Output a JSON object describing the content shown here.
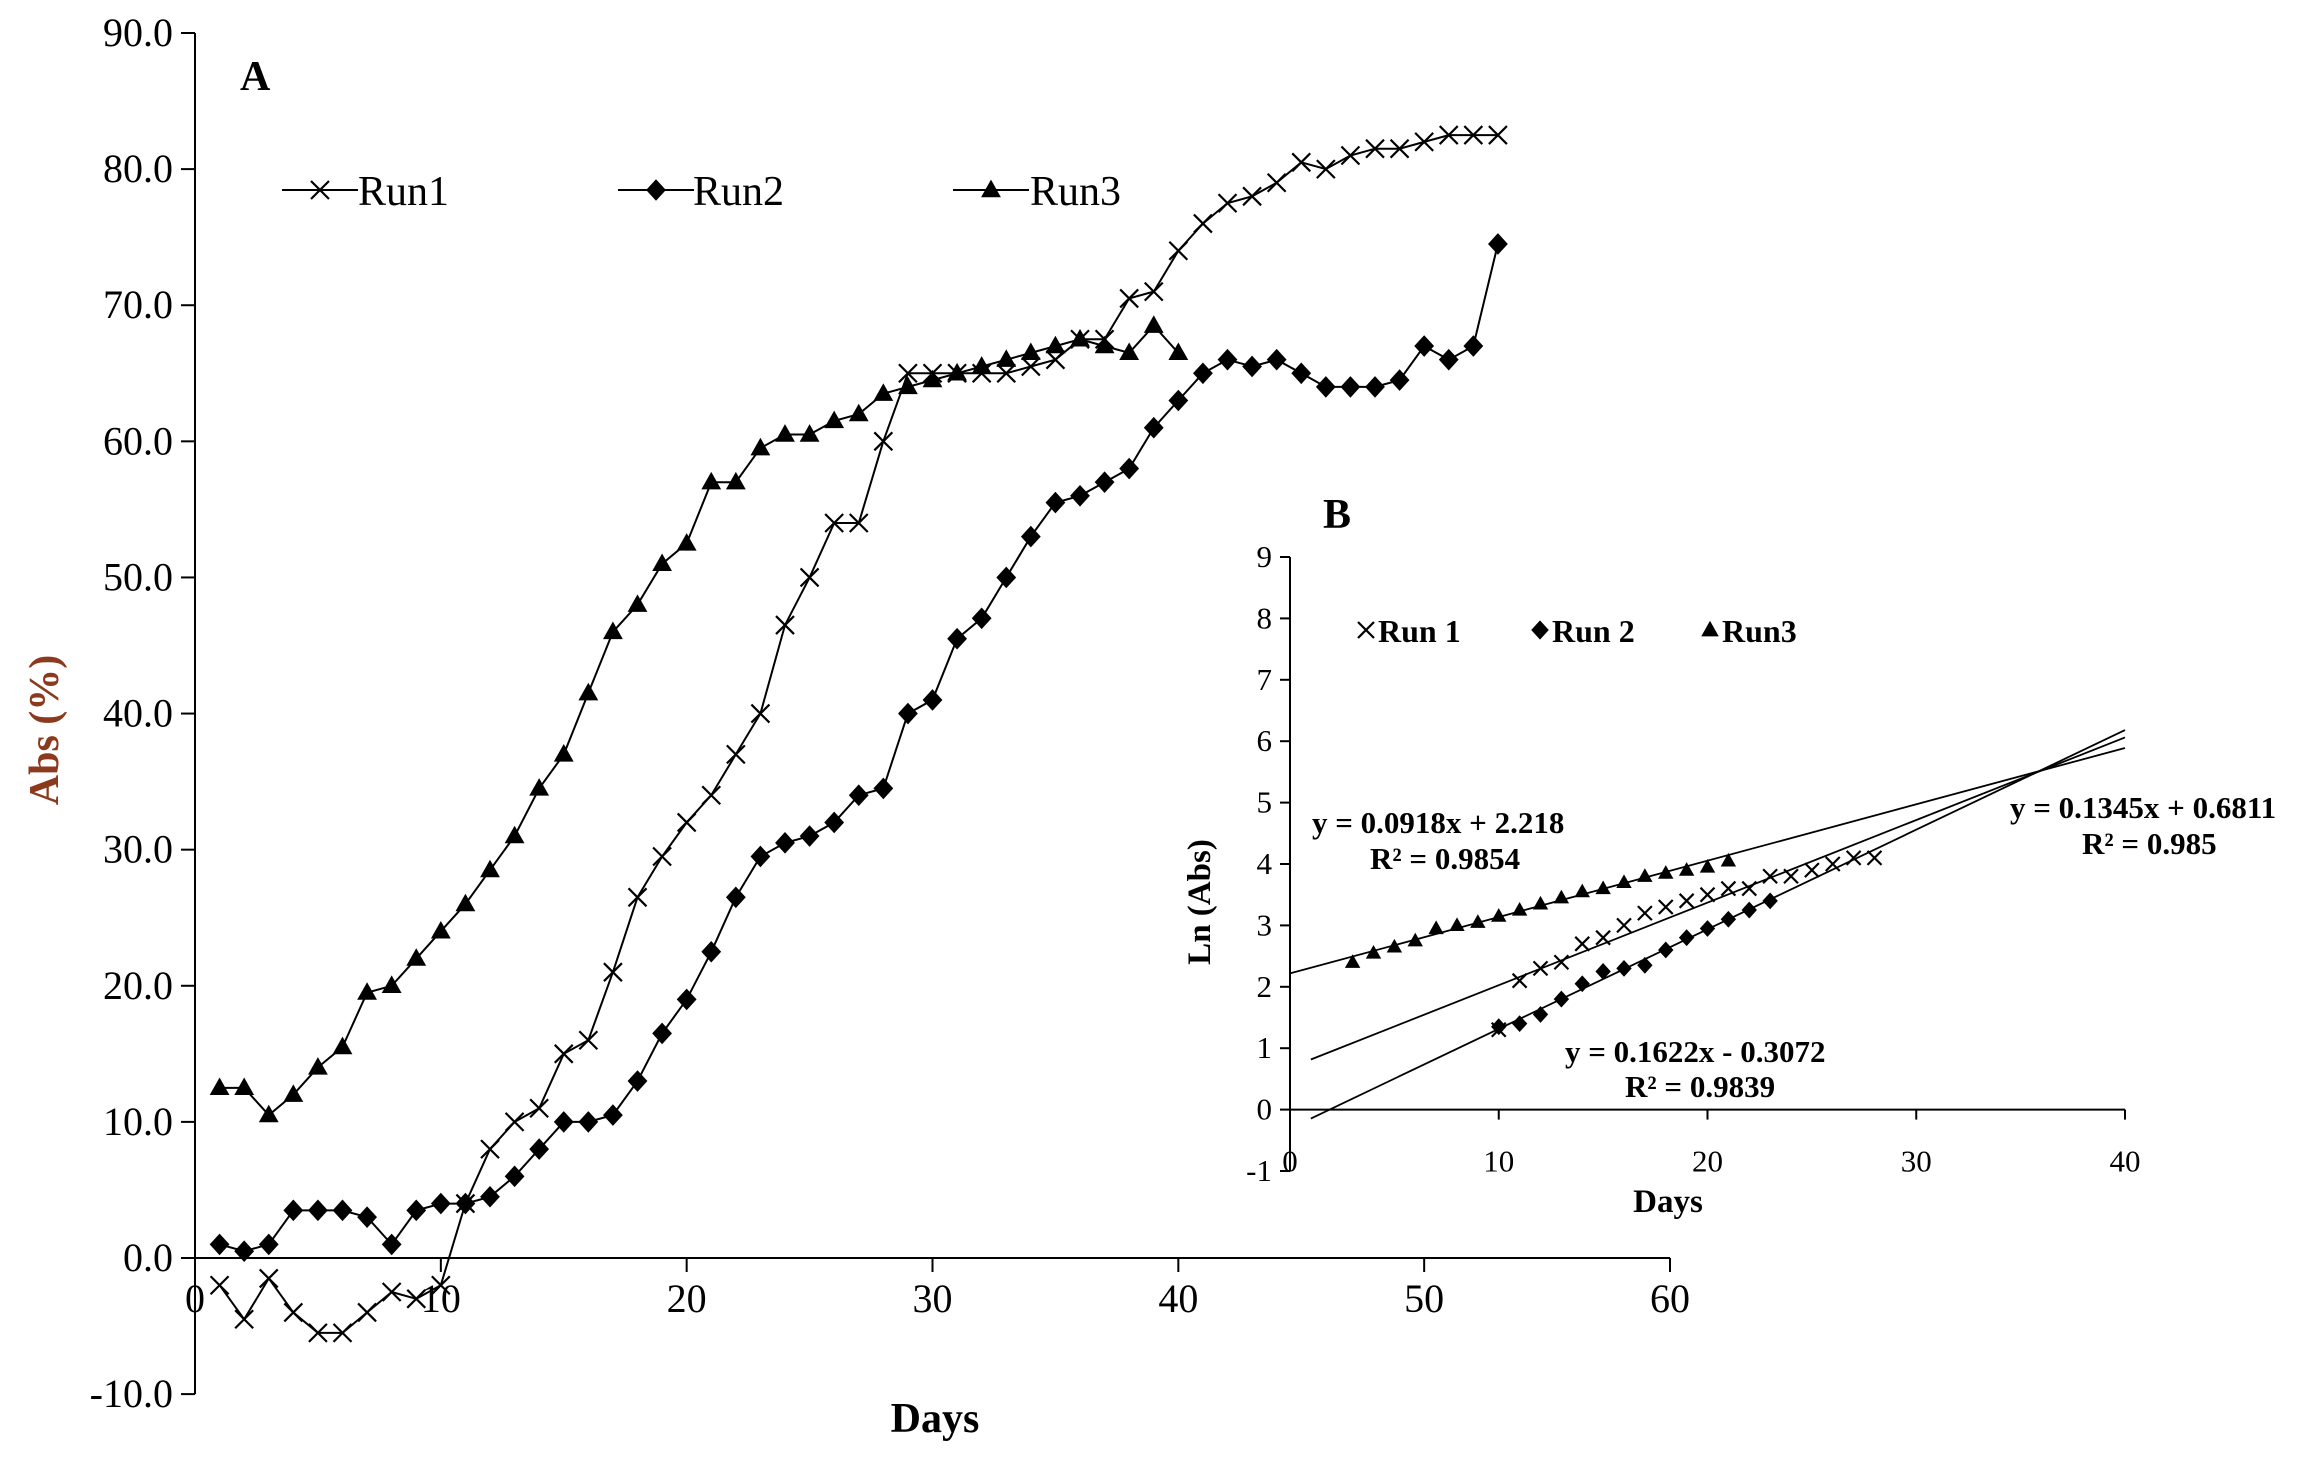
{
  "chart_data": [
    {
      "type": "line",
      "panel_label": "A",
      "xlabel": "Days",
      "ylabel": "Abs (%)",
      "xlim": [
        0,
        60
      ],
      "ylim": [
        -10,
        90
      ],
      "x_ticks": [
        0,
        10,
        20,
        30,
        40,
        50,
        60
      ],
      "y_ticks": [
        -10,
        0,
        10,
        20,
        30,
        40,
        50,
        60,
        70,
        80,
        90
      ],
      "y_tick_labels": [
        "-10.0",
        "0.0",
        "10.0",
        "20.0",
        "30.0",
        "40.0",
        "50.0",
        "60.0",
        "70.0",
        "80.0",
        "90.0"
      ],
      "legend_position": "top-left",
      "series": [
        {
          "name": "Run1",
          "marker": "x",
          "x": [
            1,
            2,
            3,
            4,
            5,
            6,
            7,
            8,
            9,
            10,
            11,
            12,
            13,
            14,
            15,
            16,
            17,
            18,
            19,
            20,
            21,
            22,
            23,
            24,
            25,
            26,
            27,
            28,
            29,
            30,
            31,
            32,
            33,
            34,
            35,
            36,
            37,
            38,
            39,
            40,
            41,
            42,
            43,
            44,
            45,
            46,
            47,
            48,
            49,
            50,
            51,
            52,
            53
          ],
          "y": [
            -2,
            -4.5,
            -1.5,
            -4,
            -5.5,
            -5.5,
            -4,
            -2.5,
            -3,
            -2,
            4,
            8,
            10,
            11,
            15,
            16,
            21,
            26.5,
            29.5,
            32,
            34,
            37,
            40,
            46.5,
            50,
            54,
            54,
            60,
            65,
            65,
            65,
            65,
            65,
            65.5,
            66,
            67.5,
            67.5,
            70.5,
            71,
            74,
            76,
            77.5,
            78,
            79,
            80.5,
            80,
            81,
            81.5,
            81.5,
            82,
            82.5,
            82.5,
            82.5
          ]
        },
        {
          "name": "Run2",
          "marker": "diamond",
          "x": [
            1,
            2,
            3,
            4,
            5,
            6,
            7,
            8,
            9,
            10,
            11,
            12,
            13,
            14,
            15,
            16,
            17,
            18,
            19,
            20,
            21,
            22,
            23,
            24,
            25,
            26,
            27,
            28,
            29,
            30,
            31,
            32,
            33,
            34,
            35,
            36,
            37,
            38,
            39,
            40,
            41,
            42,
            43,
            44,
            45,
            46,
            47,
            48,
            49,
            50,
            51,
            52,
            53
          ],
          "y": [
            1,
            0.5,
            1,
            3.5,
            3.5,
            3.5,
            3,
            1,
            3.5,
            4,
            4,
            4.5,
            6,
            8,
            10,
            10,
            10.5,
            13,
            16.5,
            19,
            22.5,
            26.5,
            29.5,
            30.5,
            31,
            32,
            34,
            34.5,
            40,
            41,
            45.5,
            47,
            50,
            53,
            55.5,
            56,
            57,
            58,
            61,
            63,
            65,
            66,
            65.5,
            66,
            65,
            64,
            64,
            64,
            64.5,
            67,
            66,
            67,
            74.5
          ]
        },
        {
          "name": "Run3",
          "marker": "triangle",
          "x": [
            1,
            2,
            3,
            4,
            5,
            6,
            7,
            8,
            9,
            10,
            11,
            12,
            13,
            14,
            15,
            16,
            17,
            18,
            19,
            20,
            21,
            22,
            23,
            24,
            25,
            26,
            27,
            28,
            29,
            30,
            31,
            32,
            33,
            34,
            35,
            36,
            37,
            38,
            39,
            40
          ],
          "y": [
            12.5,
            12.5,
            10.5,
            12,
            14,
            15.5,
            19.5,
            20,
            22,
            24,
            26,
            28.5,
            31,
            34.5,
            37,
            41.5,
            46,
            48,
            51,
            52.5,
            57,
            57,
            59.5,
            60.5,
            60.5,
            61.5,
            62,
            63.5,
            64,
            64.5,
            65,
            65.5,
            66,
            66.5,
            67,
            67.5,
            67,
            66.5,
            68.5,
            66.5
          ]
        }
      ]
    },
    {
      "type": "scatter",
      "panel_label": "B",
      "xlabel": "Days",
      "ylabel": "Ln (Abs)",
      "xlim": [
        0,
        40
      ],
      "ylim": [
        -1,
        9
      ],
      "x_ticks": [
        0,
        10,
        20,
        30,
        40
      ],
      "y_ticks": [
        -1,
        0,
        1,
        2,
        3,
        4,
        5,
        6,
        7,
        8,
        9
      ],
      "legend_position": "top-left",
      "series": [
        {
          "name": "Run 1",
          "marker": "x",
          "x": [
            10,
            11,
            12,
            13,
            14,
            15,
            16,
            17,
            18,
            19,
            20,
            21,
            22,
            23,
            24,
            25,
            26,
            27,
            28
          ],
          "y": [
            1.3,
            2.1,
            2.3,
            2.4,
            2.7,
            2.8,
            3.0,
            3.2,
            3.3,
            3.4,
            3.5,
            3.6,
            3.6,
            3.8,
            3.8,
            3.9,
            4.0,
            4.1,
            4.1
          ],
          "fit": {
            "slope": 0.1345,
            "intercept": 0.6811,
            "x_range": [
              1,
              40
            ],
            "equation": "y = 0.1345x + 0.6811",
            "r2": "R² = 0.985"
          }
        },
        {
          "name": "Run 2",
          "marker": "diamond",
          "x": [
            10,
            11,
            12,
            13,
            14,
            15,
            16,
            17,
            18,
            19,
            20,
            21,
            22,
            23
          ],
          "y": [
            1.35,
            1.4,
            1.55,
            1.8,
            2.05,
            2.25,
            2.3,
            2.35,
            2.6,
            2.8,
            2.95,
            3.1,
            3.25,
            3.4
          ],
          "fit": {
            "slope": 0.1622,
            "intercept": -0.3072,
            "x_range": [
              1,
              40
            ],
            "equation": "y = 0.1622x - 0.3072",
            "r2": "R² = 0.9839"
          }
        },
        {
          "name": "Run3",
          "marker": "triangle",
          "x": [
            3,
            4,
            5,
            6,
            7,
            8,
            9,
            10,
            11,
            12,
            13,
            14,
            15,
            16,
            17,
            18,
            19,
            20,
            21
          ],
          "y": [
            2.4,
            2.55,
            2.65,
            2.75,
            2.95,
            3.0,
            3.05,
            3.15,
            3.25,
            3.35,
            3.45,
            3.55,
            3.6,
            3.7,
            3.8,
            3.85,
            3.9,
            3.95,
            4.05
          ],
          "fit": {
            "slope": 0.0918,
            "intercept": 2.218,
            "x_range": [
              0,
              40
            ],
            "equation": "y = 0.0918x + 2.218",
            "r2": "R² = 0.9854"
          }
        }
      ]
    }
  ]
}
